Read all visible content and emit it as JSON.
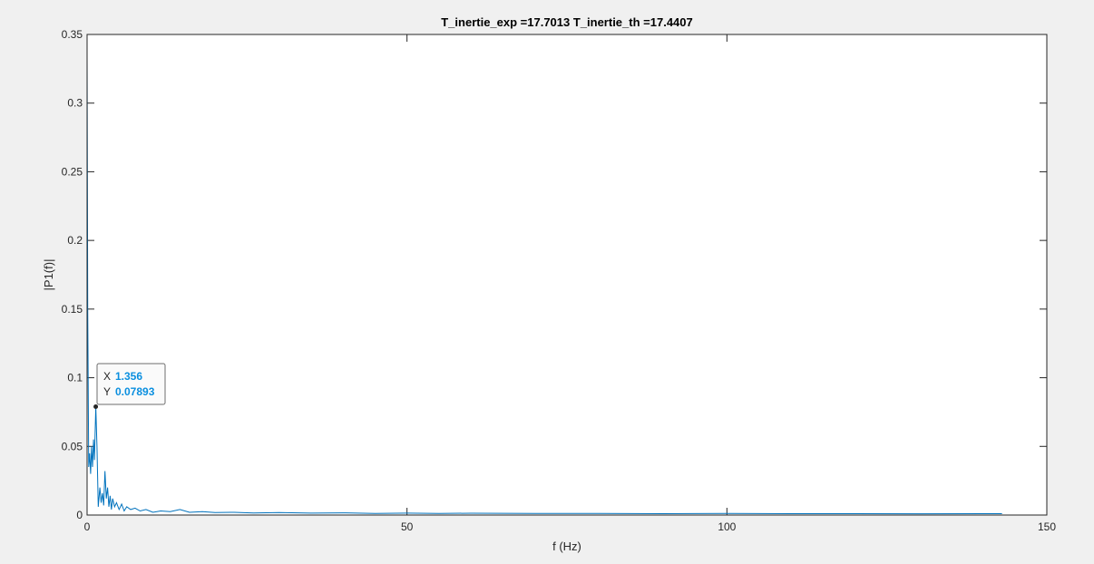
{
  "chart_data": {
    "type": "line",
    "title": "T_inertie_exp =17.7013 T_inertie_th =17.4407",
    "xlabel": "f (Hz)",
    "ylabel": "|P1(f)|",
    "xlim": [
      0,
      150
    ],
    "ylim": [
      0,
      0.35
    ],
    "xticks": [
      0,
      50,
      100,
      150
    ],
    "xtick_labels": [
      "0",
      "50",
      "100",
      "150"
    ],
    "yticks": [
      0,
      0.05,
      0.1,
      0.15,
      0.2,
      0.25,
      0.3,
      0.35
    ],
    "ytick_labels": [
      "0",
      "0.05",
      "0.1",
      "0.15",
      "0.2",
      "0.25",
      "0.3",
      "0.35"
    ],
    "grid": false,
    "series": [
      {
        "color": "#0072bd",
        "x": [
          0,
          0.1,
          0.25,
          0.4,
          0.55,
          0.7,
          0.85,
          1.0,
          1.15,
          1.356,
          1.55,
          1.75,
          2.0,
          2.2,
          2.4,
          2.6,
          2.8,
          3.0,
          3.2,
          3.4,
          3.6,
          3.8,
          4.0,
          4.3,
          4.6,
          5.0,
          5.4,
          5.8,
          6.2,
          6.8,
          7.5,
          8.3,
          9.2,
          10.3,
          11.5,
          13,
          14.5,
          16,
          18,
          20,
          23,
          26,
          30,
          35,
          40,
          45,
          50,
          55,
          60,
          70,
          80,
          90,
          100,
          110,
          120,
          130,
          140,
          143
        ],
        "y": [
          0.335,
          0.15,
          0.035,
          0.045,
          0.03,
          0.05,
          0.035,
          0.055,
          0.04,
          0.07893,
          0.05,
          0.006,
          0.02,
          0.009,
          0.016,
          0.007,
          0.032,
          0.012,
          0.02,
          0.006,
          0.014,
          0.004,
          0.012,
          0.006,
          0.009,
          0.004,
          0.008,
          0.003,
          0.006,
          0.004,
          0.005,
          0.003,
          0.004,
          0.002,
          0.003,
          0.0025,
          0.004,
          0.002,
          0.0025,
          0.0018,
          0.002,
          0.0015,
          0.0018,
          0.0014,
          0.0016,
          0.0012,
          0.0014,
          0.0012,
          0.0013,
          0.0011,
          0.0012,
          0.001,
          0.0011,
          0.001,
          0.001,
          0.0009,
          0.001,
          0.001
        ]
      }
    ],
    "datatip": {
      "x_label": "X",
      "x_value": "1.356",
      "y_label": "Y",
      "y_value": "0.07893"
    }
  }
}
